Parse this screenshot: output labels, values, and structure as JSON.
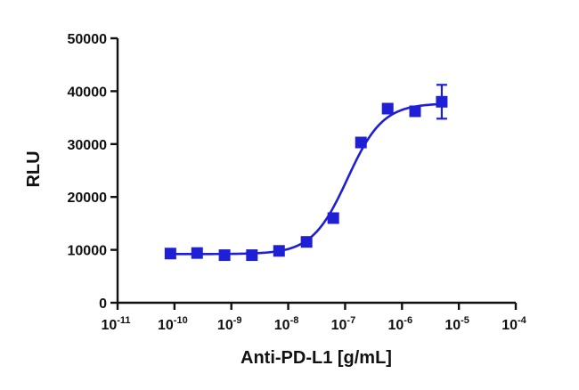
{
  "chart_data": {
    "type": "scatter",
    "title": "",
    "xlabel": "Anti-PD-L1 [g/mL]",
    "ylabel": "RLU",
    "x_scale": "log",
    "xlim": [
      1e-11,
      0.0001
    ],
    "ylim": [
      0,
      50000
    ],
    "x_ticks": [
      {
        "value": 1e-11,
        "base": "10",
        "exp": "-11"
      },
      {
        "value": 1e-10,
        "base": "10",
        "exp": "-10"
      },
      {
        "value": 1e-09,
        "base": "10",
        "exp": "-9"
      },
      {
        "value": 1e-08,
        "base": "10",
        "exp": "-8"
      },
      {
        "value": 1e-07,
        "base": "10",
        "exp": "-7"
      },
      {
        "value": 1e-06,
        "base": "10",
        "exp": "-6"
      },
      {
        "value": 1e-05,
        "base": "10",
        "exp": "-5"
      },
      {
        "value": 0.0001,
        "base": "10",
        "exp": "-4"
      }
    ],
    "y_ticks": [
      {
        "value": 0,
        "label": "0"
      },
      {
        "value": 10000,
        "label": "10000"
      },
      {
        "value": 20000,
        "label": "20000"
      },
      {
        "value": 30000,
        "label": "30000"
      },
      {
        "value": 40000,
        "label": "40000"
      },
      {
        "value": 50000,
        "label": "50000"
      }
    ],
    "grid": false,
    "color": "#1f1fd6",
    "series": [
      {
        "points": [
          {
            "x": 8.5e-11,
            "y": 9300,
            "err": 300
          },
          {
            "x": 2.5e-10,
            "y": 9400,
            "err": 300
          },
          {
            "x": 7.6e-10,
            "y": 9000,
            "err": 300
          },
          {
            "x": 2.3e-09,
            "y": 9000,
            "err": 300
          },
          {
            "x": 6.9e-09,
            "y": 9800,
            "err": 300
          },
          {
            "x": 2.1e-08,
            "y": 11500,
            "err": 300
          },
          {
            "x": 6.2e-08,
            "y": 16000,
            "err": 400
          },
          {
            "x": 1.9e-07,
            "y": 30300,
            "err": 400
          },
          {
            "x": 5.6e-07,
            "y": 36700,
            "err": 700
          },
          {
            "x": 1.7e-06,
            "y": 36200,
            "err": 500
          },
          {
            "x": 5e-06,
            "y": 38000,
            "err": 3200
          }
        ]
      }
    ],
    "fit": {
      "model": "4PL",
      "bottom": 9200,
      "top": 37700,
      "ec50": 1.1e-07,
      "hill": 1.4
    }
  }
}
